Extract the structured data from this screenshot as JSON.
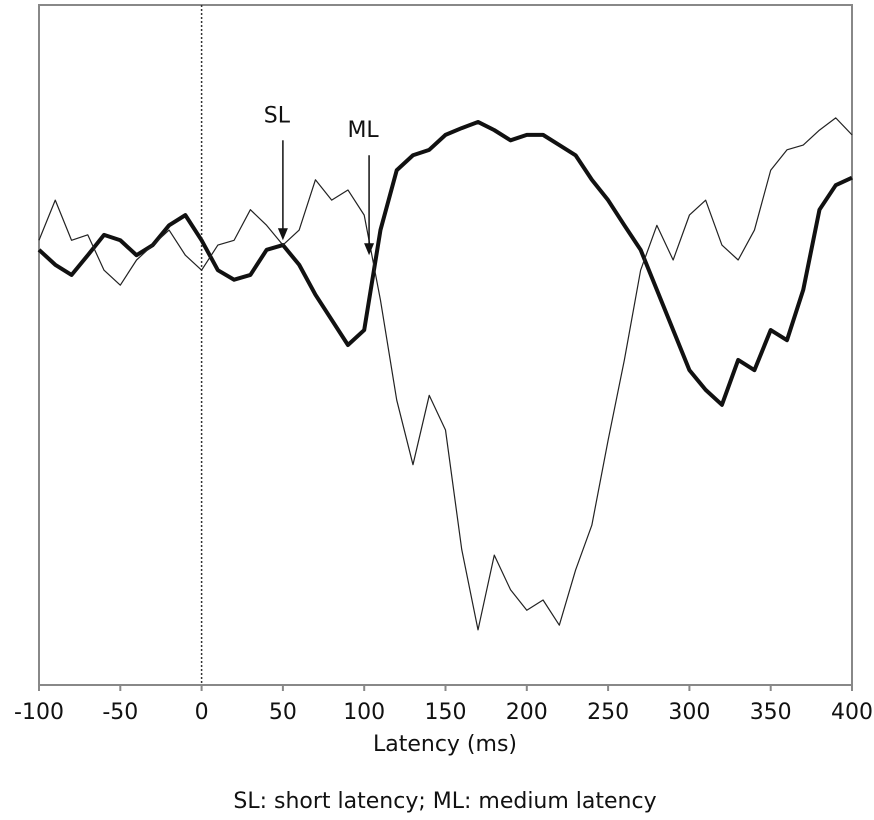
{
  "chart_data": {
    "type": "line",
    "x_label": "Latency (ms)",
    "footnote": "SL: short latency; ML: medium latency",
    "x": [
      -100,
      -90,
      -80,
      -70,
      -60,
      -50,
      -40,
      -30,
      -20,
      -10,
      0,
      10,
      20,
      30,
      40,
      50,
      60,
      70,
      80,
      90,
      100,
      110,
      120,
      130,
      140,
      150,
      160,
      170,
      180,
      190,
      200,
      210,
      220,
      230,
      240,
      250,
      260,
      270,
      280,
      290,
      300,
      310,
      320,
      330,
      340,
      350,
      360,
      370,
      380,
      390,
      400
    ],
    "series": [
      {
        "color": "#111111",
        "width": 4,
        "values": [
          64.0,
          61.8,
          60.3,
          63.2,
          66.2,
          65.4,
          63.2,
          64.7,
          67.6,
          69.1,
          65.4,
          61.0,
          59.6,
          60.3,
          64.0,
          64.7,
          61.8,
          57.4,
          53.7,
          50.0,
          52.2,
          66.9,
          75.7,
          77.9,
          78.7,
          80.9,
          81.9,
          82.8,
          81.6,
          80.1,
          80.9,
          80.9,
          79.4,
          77.9,
          74.3,
          71.3,
          67.6,
          64.0,
          58.1,
          52.2,
          46.3,
          43.4,
          41.2,
          47.8,
          46.3,
          52.2,
          50.7,
          58.1,
          69.9,
          73.5,
          74.6
        ]
      },
      {
        "color": "#222222",
        "width": 1.2,
        "values": [
          65.4,
          71.3,
          65.4,
          66.2,
          61.0,
          58.8,
          62.5,
          64.7,
          66.9,
          63.2,
          61.0,
          64.7,
          65.4,
          69.9,
          67.6,
          64.7,
          66.9,
          74.3,
          71.3,
          72.8,
          69.1,
          56.6,
          41.9,
          32.4,
          42.6,
          37.5,
          19.9,
          8.1,
          19.1,
          14.0,
          11.0,
          12.5,
          8.8,
          16.9,
          23.5,
          36.0,
          47.8,
          61.0,
          67.6,
          62.5,
          69.1,
          71.3,
          64.7,
          62.5,
          66.9,
          75.7,
          78.7,
          79.4,
          81.6,
          83.4,
          80.9
        ]
      }
    ],
    "annotations": [
      {
        "text": "SL",
        "x": 50,
        "y": 65.4
      },
      {
        "text": "ML",
        "x": 103,
        "y": 63.2
      }
    ],
    "vline": 0,
    "xlim": [
      -100,
      400
    ],
    "xticks": [
      -100,
      -50,
      0,
      50,
      100,
      150,
      200,
      250,
      300,
      350,
      400
    ],
    "ylim": [
      0,
      100
    ]
  }
}
